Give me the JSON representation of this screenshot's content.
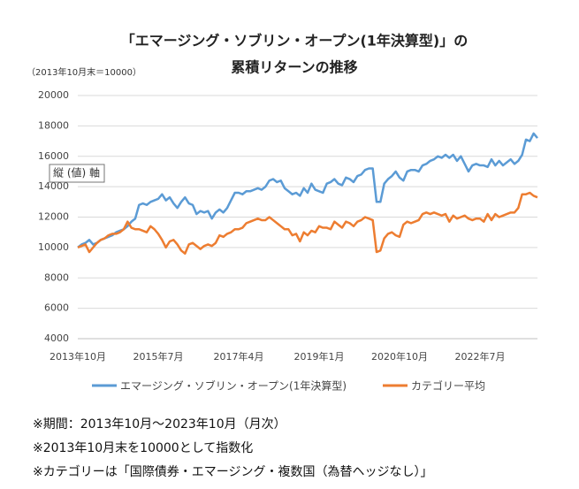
{
  "chart_data": {
    "type": "line",
    "title": [
      "「エマージング・ソブリン・オープン(1年決算型)」の",
      "累積リターンの推移"
    ],
    "unit_note": "（2013年10月末＝10000）",
    "categories": [
      "2013年10月",
      null,
      null,
      null,
      null,
      null,
      null,
      null,
      null,
      null,
      null,
      null,
      null,
      null,
      null,
      null,
      null,
      null,
      null,
      null,
      null,
      "2015年7月",
      null,
      null,
      null,
      null,
      null,
      null,
      null,
      null,
      null,
      null,
      null,
      null,
      null,
      null,
      null,
      null,
      null,
      null,
      null,
      null,
      "2017年4月",
      null,
      null,
      null,
      null,
      null,
      null,
      null,
      null,
      null,
      null,
      null,
      null,
      null,
      null,
      null,
      null,
      null,
      null,
      null,
      null,
      "2019年1月",
      null,
      null,
      null,
      null,
      null,
      null,
      null,
      null,
      null,
      null,
      null,
      null,
      null,
      null,
      null,
      null,
      null,
      null,
      null,
      null,
      "2020年10月",
      null,
      null,
      null,
      null,
      null,
      null,
      null,
      null,
      null,
      null,
      null,
      null,
      null,
      null,
      null,
      null,
      null,
      null,
      null,
      null,
      "2022年7月",
      null,
      null,
      null,
      null,
      null,
      null,
      null,
      null,
      null,
      null,
      null,
      null,
      null,
      null,
      null
    ],
    "series": [
      {
        "name": "エマージング・ソブリン・オープン(1年決算型)",
        "color": "#5b9bd5",
        "values": [
          10000,
          10200,
          10300,
          10500,
          10200,
          10300,
          10500,
          10600,
          10700,
          10800,
          11000,
          11100,
          11200,
          11400,
          11700,
          11900,
          12800,
          12900,
          12800,
          13000,
          13100,
          13200,
          13500,
          13100,
          13300,
          12900,
          12600,
          13000,
          13300,
          12900,
          12800,
          12200,
          12400,
          12300,
          12400,
          11900,
          12300,
          12500,
          12300,
          12600,
          13100,
          13600,
          13600,
          13500,
          13700,
          13700,
          13800,
          13900,
          13800,
          14000,
          14400,
          14500,
          14300,
          14400,
          13900,
          13700,
          13500,
          13600,
          13400,
          13900,
          13600,
          14200,
          13800,
          13700,
          13600,
          14200,
          14300,
          14500,
          14200,
          14100,
          14600,
          14500,
          14300,
          14700,
          14800,
          15100,
          15200,
          15200,
          13000,
          13000,
          14200,
          14500,
          14700,
          15000,
          14600,
          14400,
          15000,
          15100,
          15100,
          15000,
          15400,
          15500,
          15700,
          15800,
          16000,
          15900,
          16100,
          15900,
          16100,
          15700,
          16000,
          15500,
          15000,
          15400,
          15500,
          15400,
          15400,
          15300,
          15800,
          15400,
          15700,
          15400,
          15600,
          15800,
          15500,
          15700,
          16100,
          17100,
          17000,
          17500,
          17200
        ]
      },
      {
        "name": "カテゴリー平均",
        "color": "#ed7d31",
        "values": [
          10000,
          10100,
          10200,
          9700,
          10000,
          10300,
          10500,
          10600,
          10800,
          10900,
          10900,
          11000,
          11200,
          11700,
          11300,
          11200,
          11200,
          11100,
          11000,
          11400,
          11200,
          10900,
          10500,
          10000,
          10400,
          10500,
          10200,
          9800,
          9600,
          10200,
          10300,
          10100,
          9900,
          10100,
          10200,
          10100,
          10300,
          10800,
          10700,
          10900,
          11000,
          11200,
          11200,
          11300,
          11600,
          11700,
          11800,
          11900,
          11800,
          11800,
          12000,
          11800,
          11600,
          11400,
          11200,
          11200,
          10800,
          10900,
          10400,
          11000,
          10800,
          11100,
          11000,
          11400,
          11300,
          11300,
          11200,
          11700,
          11500,
          11300,
          11700,
          11600,
          11400,
          11700,
          11800,
          12000,
          11900,
          11800,
          9700,
          9800,
          10600,
          10900,
          11000,
          10800,
          10700,
          11500,
          11700,
          11600,
          11700,
          11800,
          12200,
          12300,
          12200,
          12300,
          12200,
          12100,
          12200,
          11700,
          12100,
          11900,
          12000,
          12100,
          11900,
          11800,
          11900,
          11900,
          11700,
          12200,
          11800,
          12200,
          12000,
          12100,
          12200,
          12300,
          12300,
          12600,
          13500,
          13500,
          13600,
          13400,
          13300
        ]
      }
    ],
    "ylim": [
      4000,
      20000
    ],
    "yticks": [
      4000,
      6000,
      8000,
      10000,
      12000,
      14000,
      16000,
      18000,
      20000
    ],
    "grid": true,
    "legend": "bottom"
  },
  "tooltip": "縦 (値) 軸",
  "notes": [
    "※期間：2013年10月～2023年10月（月次）",
    "※2013年10月末を10000として指数化",
    "※カテゴリーは「国際債券・エマージング・複数国（為替ヘッジなし）」"
  ]
}
